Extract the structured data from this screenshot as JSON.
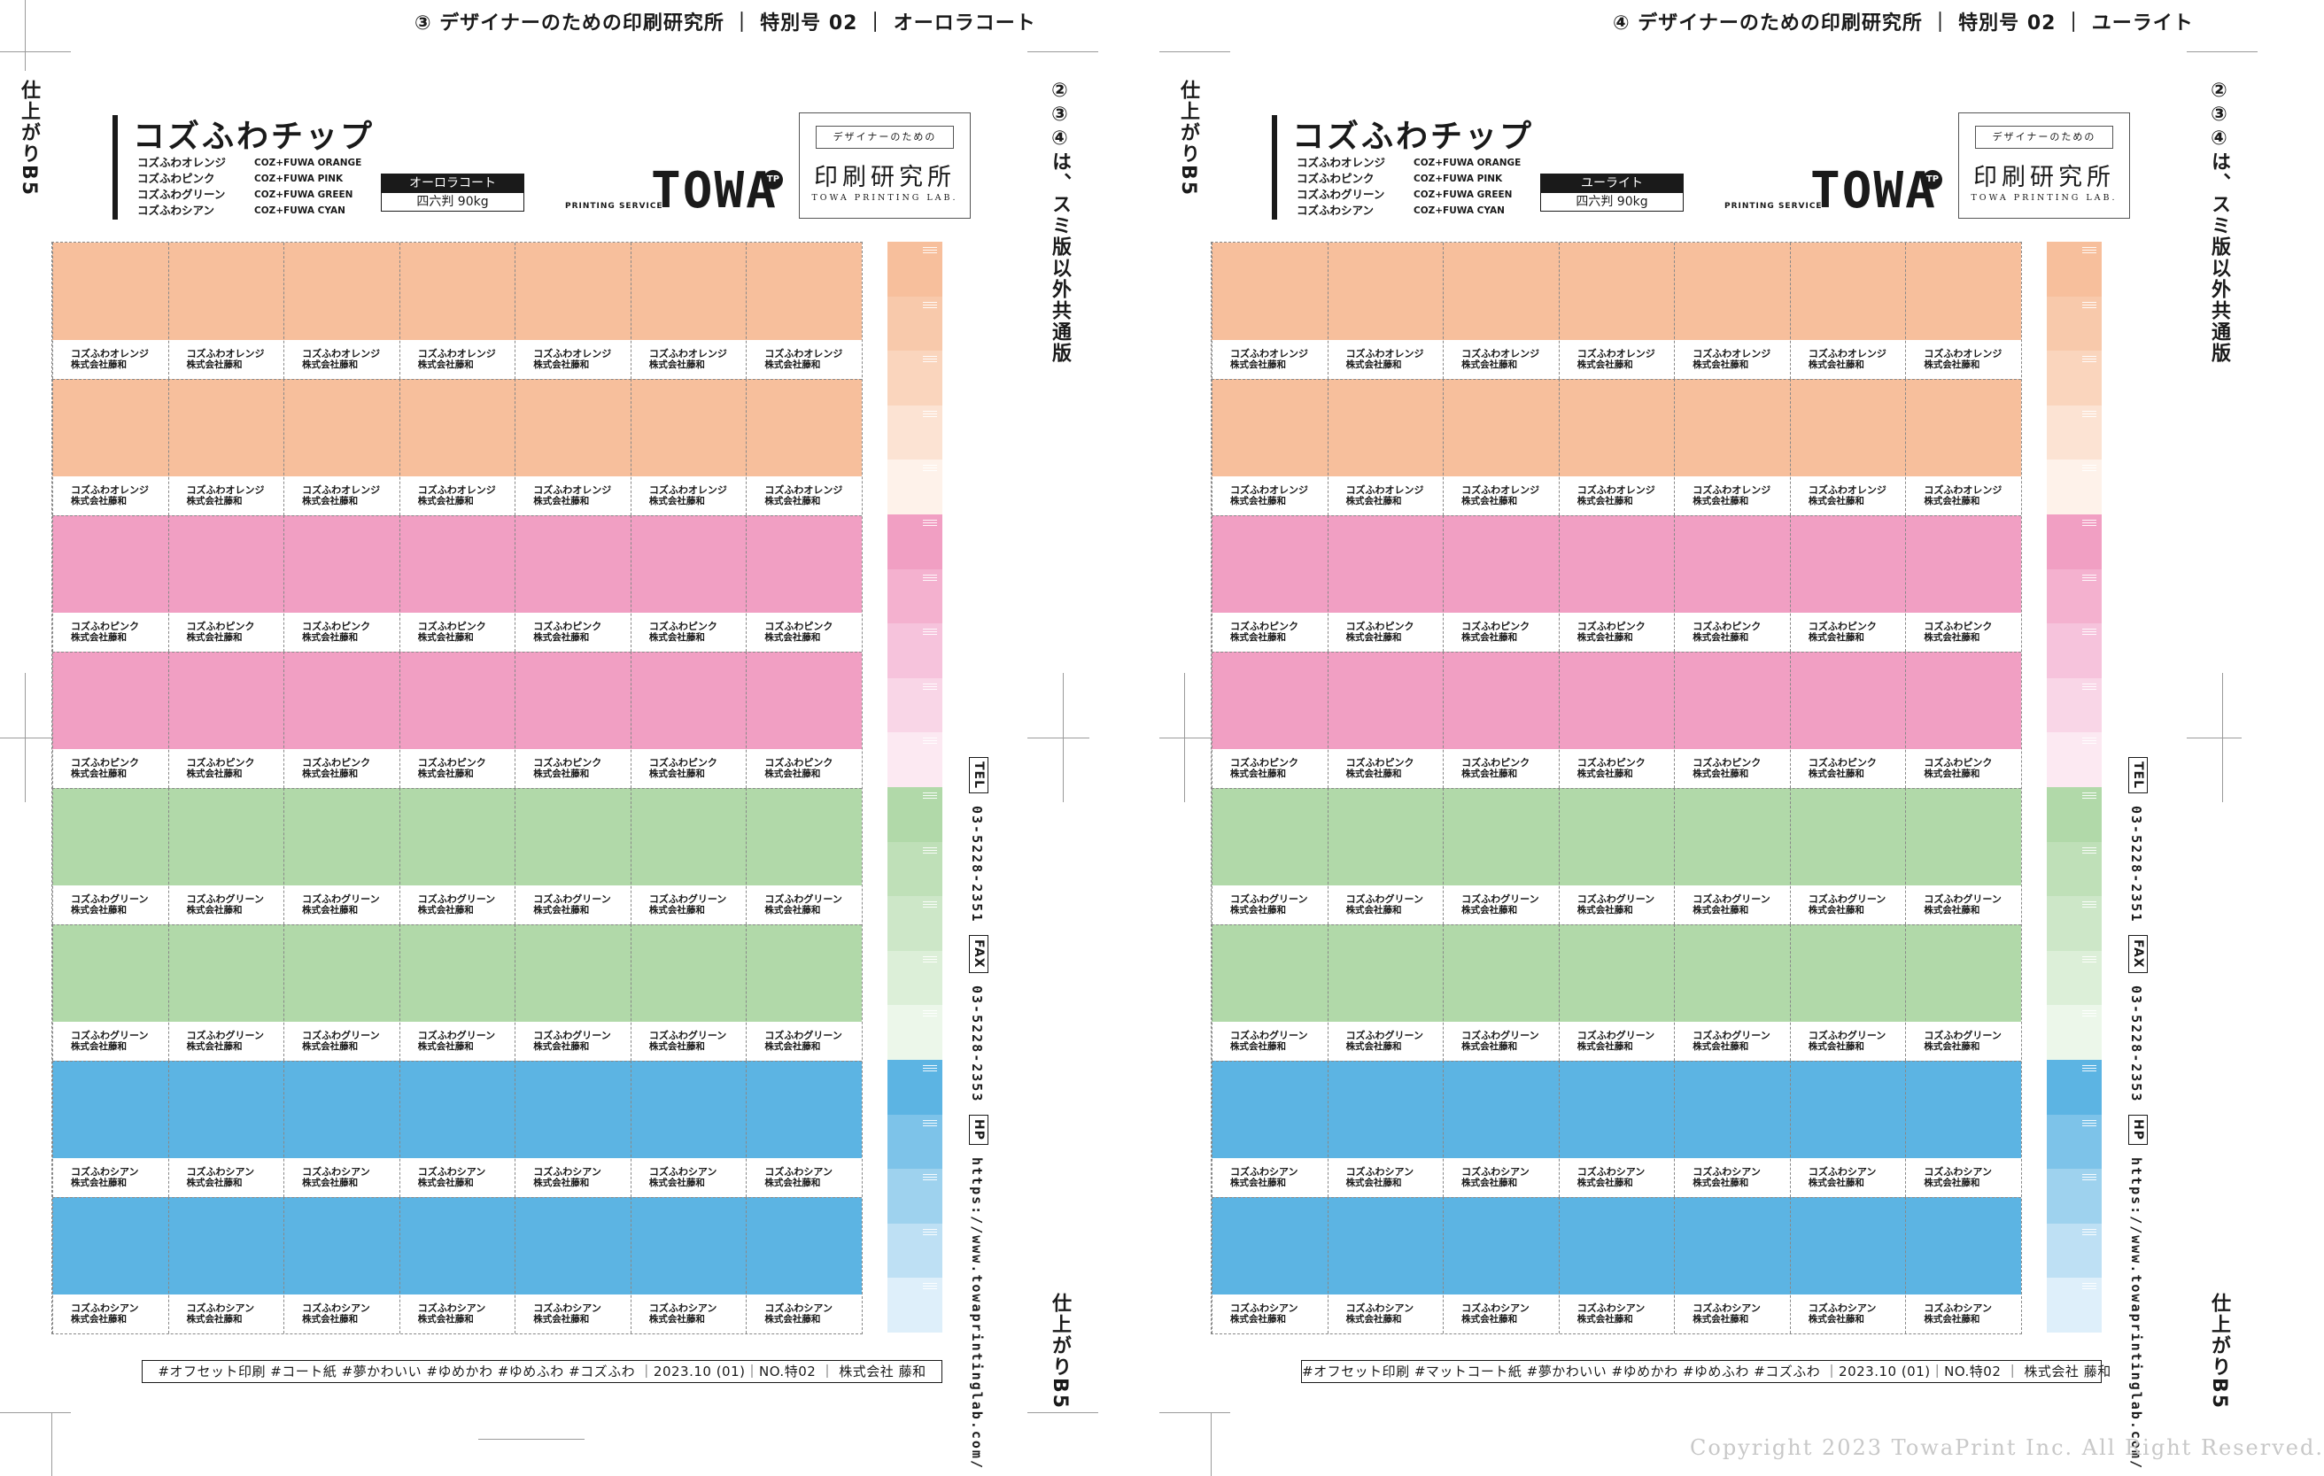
{
  "common": {
    "product_title": "コズふわチップ",
    "names_jp": [
      "コズふわオレンジ",
      "コズふわピンク",
      "コズふわグリーン",
      "コズふわシアン"
    ],
    "names_en": [
      "COZ+FUWA ORANGE",
      "COZ+FUWA PINK",
      "COZ+FUWA GREEN",
      "COZ+FUWA CYAN"
    ],
    "paper_weight": "四六判 90kg",
    "printing_service": "PRINTING SERVICE",
    "logo_text": "TOWA",
    "logo_mark": "TP",
    "lab_top": "デザイナーのための",
    "lab_main": "印刷研究所",
    "lab_sub": "TOWA PRINTING LAB.",
    "finish_size_top": "仕上がりB5",
    "finish_size_bottom": "仕上がりB5",
    "company_label": "株式会社藤和",
    "contact": [
      {
        "label": "TEL",
        "value": "03-5228-2351"
      },
      {
        "label": "FAX",
        "value": "03-5228-2353"
      },
      {
        "label": "HP",
        "value": "https://www.towaprintinglab.com/"
      }
    ]
  },
  "left_sheet": {
    "header": "③ デザイナーのための印刷研究所 ｜ 特別号 02 ｜ オーロラコート",
    "right_vertical": "②③④は、スミ版以外共通版",
    "paper_name": "オーロラコート",
    "footer": "#オフセット印刷 #コート紙 #夢かわいい #ゆめかわ #ゆめふわ #コズふわ ｜2023.10 (01)｜NO.特02 ｜ 株式会社 藤和"
  },
  "right_sheet": {
    "header": "④ デザイナーのための印刷研究所 ｜ 特別号 02 ｜ ユーライト",
    "right_vertical": "②③④は、スミ版以外共通版",
    "paper_name": "ユーライト",
    "footer": "#オフセット印刷 #マットコート紙 #夢かわいい #ゆめかわ #ゆめふわ #コズふわ ｜2023.10 (01)｜NO.特02 ｜ 株式会社 藤和"
  },
  "rows": [
    {
      "label": "コズふわオレンジ",
      "color": "#f7bf9c"
    },
    {
      "label": "コズふわオレンジ",
      "color": "#f7bf9c"
    },
    {
      "label": "コズふわピンク",
      "color": "#f19fc3"
    },
    {
      "label": "コズふわピンク",
      "color": "#f19fc3"
    },
    {
      "label": "コズふわグリーン",
      "color": "#b1d9a9"
    },
    {
      "label": "コズふわグリーン",
      "color": "#b1d9a9"
    },
    {
      "label": "コズふわシアン",
      "color": "#5cb4e3"
    },
    {
      "label": "コズふわシアン",
      "color": "#5cb4e3"
    }
  ],
  "tint_strip": [
    "#f7bf9c",
    "#f8c9ab",
    "#fad5bd",
    "#fce3d3",
    "#fef2ea",
    "#f19fc3",
    "#f4b1cf",
    "#f6c3dc",
    "#f9d6e7",
    "#fce9f2",
    "#b1d9a9",
    "#bfe0b8",
    "#cde7c8",
    "#dcefd8",
    "#ecf7ea",
    "#5cb4e3",
    "#7dc3e9",
    "#9ed2ee",
    "#bee0f4",
    "#deeffa"
  ],
  "copyright": "Copyright 2023 TowaPrint Inc. All Right Reserved."
}
